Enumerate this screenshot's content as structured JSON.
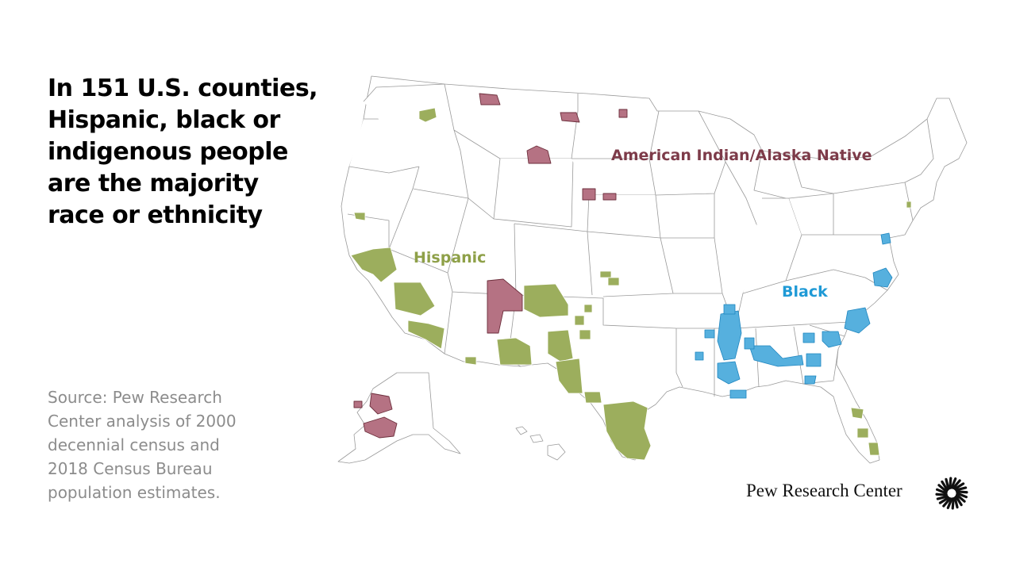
{
  "title": "In 151 U.S. counties, Hispanic, black or indigenous people are the majority race or ethnicity",
  "source": "Source: Pew Research Center analysis of 2000 decennial census and 2018 Census Bureau population estimates.",
  "legend": {
    "hispanic": "Hispanic",
    "black": "Black",
    "native": "American Indian/Alaska Native"
  },
  "colors": {
    "hispanic": "#9cae5d",
    "black": "#56b0de",
    "native": "#b57283",
    "state_border": "#9a9a9a"
  },
  "brand": {
    "name": "Pew Research Center",
    "logo_icon": "pew-sunburst-icon"
  }
}
